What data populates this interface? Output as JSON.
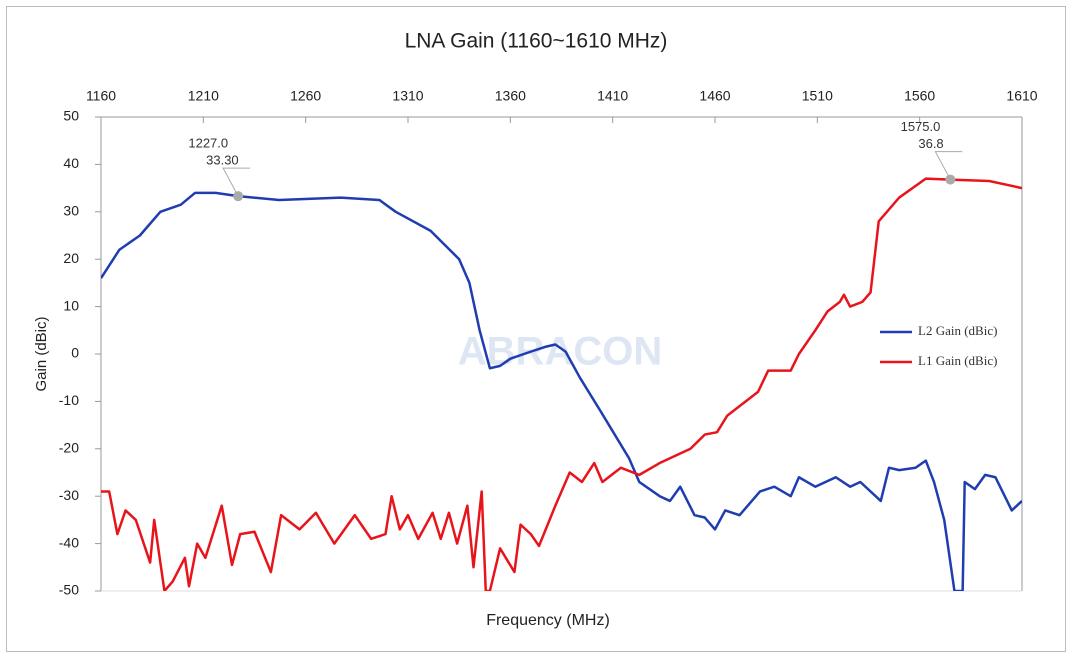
{
  "chart_data": {
    "type": "line",
    "title": "LNA Gain (1160~1610 MHz)",
    "x_label": "Frequency (MHz)",
    "y_label": "Gain (dBic)",
    "watermark": "ABRACON",
    "xlim": [
      1160,
      1610
    ],
    "xticks": [
      1160,
      1210,
      1260,
      1310,
      1360,
      1410,
      1460,
      1510,
      1560,
      1610
    ],
    "ylim": [
      -50,
      50
    ],
    "yticks": [
      50,
      40,
      30,
      20,
      10,
      0,
      -10,
      -20,
      -30,
      -40,
      -50
    ],
    "legend": "right",
    "series": [
      {
        "name": "L2 Gain (dBic)",
        "color": "#1f3db0",
        "x": [
          1160,
          1169,
          1179,
          1189,
          1199,
          1206,
          1216,
          1227,
          1247,
          1277,
          1296,
          1304,
          1321,
          1335,
          1340,
          1345,
          1350,
          1355,
          1360,
          1370,
          1377,
          1382,
          1387,
          1394,
          1404,
          1411,
          1418,
          1423,
          1433,
          1438,
          1443,
          1450,
          1455,
          1460,
          1465,
          1472,
          1482,
          1489,
          1497,
          1501,
          1509,
          1519,
          1526,
          1531,
          1541,
          1545,
          1550,
          1558,
          1563,
          1567,
          1572,
          1577,
          1581,
          1582,
          1587,
          1592,
          1597,
          1605,
          1610
        ],
        "values": [
          16,
          22,
          25,
          30,
          31.5,
          34,
          34,
          33.3,
          32.5,
          33,
          32.5,
          30,
          26,
          20,
          15,
          5,
          -3,
          -2.5,
          -1,
          0.5,
          1.5,
          2,
          0.5,
          -5,
          -12,
          -17,
          -22,
          -27,
          -30,
          -31,
          -28,
          -34,
          -34.5,
          -37,
          -33,
          -34,
          -29,
          -28,
          -30,
          -26,
          -28,
          -26,
          -28,
          -27,
          -31,
          -24,
          -24.5,
          -24,
          -22.5,
          -27,
          -35,
          -50,
          -50,
          -27,
          -28.5,
          -25.5,
          -26,
          -33,
          -31
        ]
      },
      {
        "name": "L1 Gain (dBic)",
        "color": "#e8141b",
        "x": [
          1160,
          1164,
          1168,
          1172,
          1177,
          1184,
          1186,
          1191,
          1195,
          1201,
          1203,
          1207,
          1211,
          1219,
          1224,
          1228,
          1235,
          1243,
          1248,
          1257,
          1265,
          1274,
          1284,
          1292,
          1299,
          1302,
          1306,
          1310,
          1315,
          1322,
          1326,
          1330,
          1334,
          1339,
          1342,
          1346,
          1348,
          1350,
          1355,
          1362,
          1365,
          1370,
          1374,
          1382,
          1389,
          1395,
          1401,
          1405,
          1414,
          1423,
          1433,
          1448,
          1455,
          1461,
          1466,
          1472,
          1481,
          1486,
          1497,
          1501,
          1509,
          1515,
          1521,
          1523,
          1526,
          1532,
          1536,
          1540,
          1550,
          1563,
          1575,
          1594,
          1610
        ],
        "values": [
          -29,
          -29,
          -38,
          -33,
          -35,
          -44,
          -35,
          -50,
          -48,
          -43,
          -49,
          -40,
          -43,
          -32,
          -44.5,
          -38,
          -37.5,
          -46,
          -34,
          -37,
          -33.5,
          -40,
          -34,
          -39,
          -38,
          -30,
          -37,
          -34,
          -39,
          -33.5,
          -39,
          -33.5,
          -40,
          -32,
          -45,
          -29,
          -50,
          -50,
          -41,
          -46,
          -36,
          -38,
          -40.5,
          -32,
          -25,
          -27,
          -23,
          -27,
          -24,
          -25.5,
          -23,
          -20,
          -17,
          -16.5,
          -13,
          -11,
          -8,
          -3.5,
          -3.5,
          0,
          5,
          9,
          11,
          12.5,
          10,
          11,
          13,
          28,
          33,
          37,
          36.8,
          36.5,
          35
        ]
      }
    ],
    "annotations": [
      {
        "x": 1227,
        "y": 33.3,
        "x_label": "1227.0",
        "y_label": "33.30"
      },
      {
        "x": 1575,
        "y": 36.8,
        "x_label": "1575.0",
        "y_label": "36.8"
      }
    ]
  }
}
